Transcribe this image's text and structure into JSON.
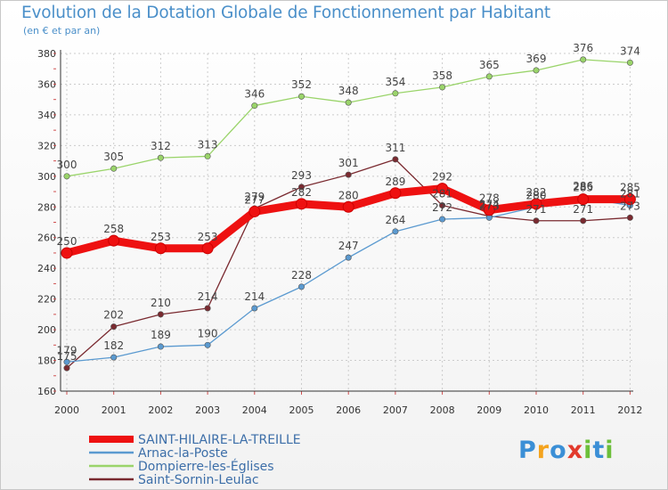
{
  "header": {
    "title": "Evolution de la Dotation Globale de Fonctionnement par Habitant",
    "subtitle": "(en € et par an)"
  },
  "chart_data": {
    "type": "line",
    "title": "Evolution de la Dotation Globale de Fonctionnement par Habitant",
    "subtitle": "(en € et par an)",
    "x": [
      "2000",
      "2001",
      "2002",
      "2003",
      "2004",
      "2005",
      "2006",
      "2007",
      "2008",
      "2009",
      "2010",
      "2011",
      "2012"
    ],
    "ylim": [
      160,
      380
    ],
    "yticks": [
      160,
      180,
      200,
      220,
      240,
      260,
      280,
      300,
      320,
      340,
      360,
      380
    ],
    "grid": true,
    "legend_position": "bottom-left",
    "series": [
      {
        "name": "Dompierre-les-Églises",
        "color": "#9ad46a",
        "values": [
          300,
          305,
          312,
          313,
          346,
          352,
          348,
          354,
          358,
          365,
          369,
          376,
          374
        ]
      },
      {
        "name": "Saint-Sornin-Leulac",
        "color": "#7a2a30",
        "values": [
          175,
          202,
          210,
          214,
          279,
          293,
          301,
          311,
          281,
          274,
          271,
          271,
          273
        ]
      },
      {
        "name": "Arnac-la-Poste",
        "color": "#5b9ad0",
        "values": [
          179,
          182,
          189,
          190,
          214,
          228,
          247,
          264,
          272,
          273,
          280,
          286,
          281
        ]
      },
      {
        "name": "SAINT-HILAIRE-LA-TREILLE",
        "color": "#ee1111",
        "values": [
          250,
          258,
          253,
          253,
          277,
          282,
          280,
          289,
          292,
          278,
          282,
          285,
          285
        ]
      }
    ],
    "legend_order": [
      "SAINT-HILAIRE-LA-TREILLE",
      "Arnac-la-Poste",
      "Dompierre-les-Églises",
      "Saint-Sornin-Leulac"
    ]
  },
  "logo": {
    "letters": [
      "P",
      "r",
      "o",
      "x",
      "i",
      "t",
      "i"
    ],
    "colors": [
      "#3b8fd6",
      "#f4a31e",
      "#3b8fd6",
      "#e23a2c",
      "#6cbf3a",
      "#3b8fd6",
      "#6cbf3a"
    ]
  }
}
